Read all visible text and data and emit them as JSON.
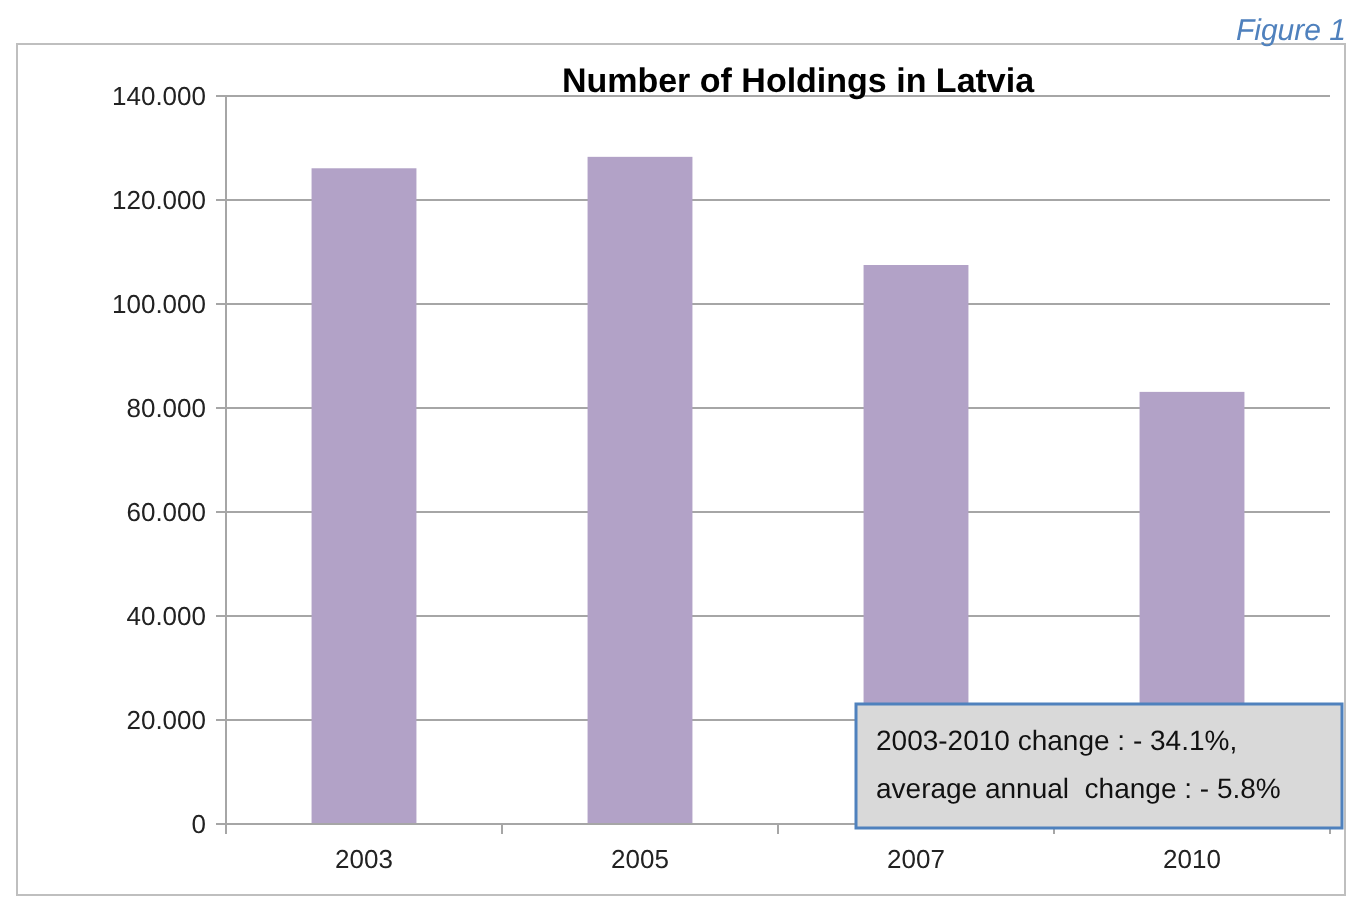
{
  "chart_data": {
    "type": "bar",
    "title": "Number of Holdings in Latvia",
    "categories": [
      "2003",
      "2005",
      "2007",
      "2010"
    ],
    "values": [
      126.1,
      128.3,
      107.5,
      83.1
    ],
    "color": "#b2a2c7",
    "ylim": [
      0,
      140
    ],
    "yticks": [
      0,
      {
        "value": 20,
        "label": "20.000"
      },
      {
        "value": 40,
        "label": "40.000"
      },
      {
        "value": 60,
        "label": "60.000"
      },
      {
        "value": 80,
        "label": "80.000"
      },
      {
        "value": 100,
        "label": "100.000"
      },
      {
        "value": 120,
        "label": "120.000"
      },
      {
        "value": 140,
        "label": "140.000"
      }
    ],
    "grid": "y",
    "annotations": [
      "Figure 1",
      "2003-2010 change : - 34.1%,",
      "average annual  change : - 5.8%"
    ]
  }
}
